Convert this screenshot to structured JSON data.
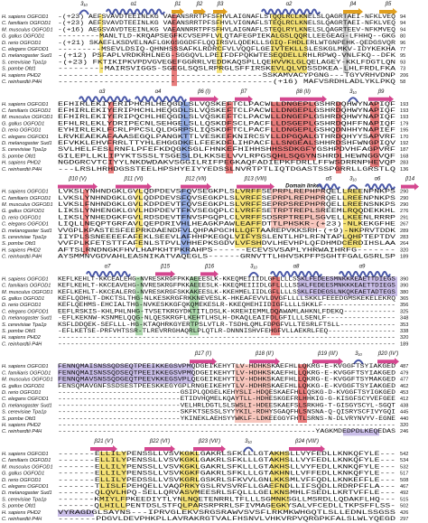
{
  "species": [
    "H. sapiens OGFOD1",
    "C. familiaris OGFOD1",
    "M. musculus OGFOD1",
    "G. gallus OGFOD1",
    "D. rerio OGFOD1",
    "C. elegans OGFOD1",
    "D. melanogaster Sud1",
    "S. cerevisiae Tpa1p",
    "S. pombe Ofd1",
    "H. sapiens PHD2",
    "C. reinhardtii P4H"
  ],
  "blocks": [
    {
      "elements": [
        "3₁₀",
        "α1",
        "β1",
        "β2",
        "β3",
        "α2",
        "β4",
        "β5"
      ],
      "rows": [
        {
          "seq": "-(+23) AEFSVAVDTEEINLKG VAEANSRRTPFSFHVLAIGNAFLSTQQLRCLKNELSLQAGRTAEI-NFKLVEQ",
          "end": 94
        },
        {
          "seq": "-(+23) AEFSVAVDTEEINLKG VAEANSRRTPFSFHVLVIGNAFLSTEQLRCLKNELSLQAGRTAEI-NFKLVEQ",
          "end": 94
        },
        {
          "seq": "-(+16) AEGSVAVDTEEINLKG VAEANNRRTPFSFHVLAIGNAFLSTEQLRYLKNELSLQAGRTEEV-NFKMVEQ",
          "end": 94
        },
        {
          "seq": "---------MANLTLD-KRQAPSEGFKCVSEPFLVLQTAFEGPIEKALGSLQQRLLEEGEAG-LFHHQ--GKG",
          "end": 80
        },
        {
          "seq": "-(+21) SKAEFLKSDVELNAFLGKGSGGDFFLQQIRSVLQDEKLLSGIQ-FHDLERLWTGNPEHK-QEDGSVQR",
          "end": 96
        },
        {
          "seq": "---------MSEVLDSIQ-QHNHSSSAFKLRDRCFVLVQQFLGEIVTEKLLSLESKGLMKV-IDYKEKHA",
          "end": 77
        },
        {
          "seq": "-(+12) PSFAPLVRDKRHLNEG-SGGQVLLPEIFDFPQKWTESEQDELLRHLRPWQ-VNLFKQ--DFK",
          "end": 95
        },
        {
          "seq": "-(+23) FKTIKIPKVPDVGVEGEFGGRRLVEDDKAQSPLLQEHVVKLGLQELAGEY-KKLFDGTLQN",
          "end": 93
        },
        {
          "seq": "---------MAIRSVIGGS-SGEGLSQSLRPRGLSFFIRSKEVLQLVDSSDKEA-LHLFRDLFKA",
          "end": 73
        },
        {
          "seq": "----------------------------------------SSKAMVACYPGNG---TGYVRHVDNP",
          "end": 206
        },
        {
          "seq": "------------------------------------------(+16) MAFVSRDHLADLYKLPKQ",
          "end": 58
        }
      ]
    },
    {
      "elements": [
        "α3",
        "α4",
        "β6 (I)",
        "β7",
        "β8 (II)",
        "3₁₀",
        "β9"
      ],
      "rows": [
        {
          "seq": "EFHIRLEKIYERIPHCHLHEQGDLSLVQSKEFTCLPACWLLDNGEPLGSHRDQHWYNAPIQF",
          "end": 193
        },
        {
          "seq": "EFHIRLEKIYERIPHCHLHEQGDLSLVQSKEFTCLPACWLLDNGEPLGSHRDQHWYNAPIQF",
          "end": 193
        },
        {
          "seq": "EFHIRLEKIYERIPQCHLHEQGDLSLVQSKEFTCLPACWLLDNGEPLGSHRDQHWYNAPIQF",
          "end": 193
        },
        {
          "seq": "EFHLRLEKLYDRIPECNLSEHGELSLLQSKDFSCLPACFLLDSGEPLGSHRDQHFFNAPIQF",
          "end": 179
        },
        {
          "seq": "EYHIRLEKLFCRLPPCSLQLDGRPSLIQSKDFTCLPACFLLDNGEPLGSHQDNHHYNAPIEF",
          "end": 195
        },
        {
          "seq": "LRVKEAEKAFAAASEGQLPANGKTTLVESKEFKNIRCSYLLDPGQALGTHRDQHYYSAPVRF",
          "end": 170
        },
        {
          "seq": "EFVKKLEHVFRRLTTYHLEHGGDKELFEEKDFLIHPACFLLSNGEALSHHRDSHFWNGPIQV",
          "end": 192
        },
        {
          "seq": "SVLHELFESLRNFLPFEFKDQGKSGLFHNKEFHIHHSHHSSDKGFYGSHPDVHFAGPVRF",
          "end": 187
        },
        {
          "seq": "GILEPLLKLIPYKTSSSLTSGESLDLKKSELVVLRPGSQHLSQGYNSHRDLHEWNGGVQF",
          "end": 168
        },
        {
          "seq": "NGDGRCVTCIYYLNKDWDAKVSGGILRIFPEGKAQFADIEPKFDRLLFFWSDRRNPHEVQP",
          "end": 283
        },
        {
          "seq": "---LRSLHRHDGSSTEELHPSHYEIYYEDSSLNVRTPTLIQTDGASTSSPGRRLLGRSTLQ",
          "end": 136
        }
      ]
    },
    {
      "elements": [
        "β10 (V)",
        "β11 (VI)",
        "β12 (VII)",
        "β13 (VIII)",
        "Domain linker",
        "α5",
        "3₁₀",
        "α6",
        "β14"
      ],
      "rows": [
        {
          "seq": "LVKSLYNHNDGKLGVLQDPDEVSFQVSEGKPLSLVRFFSEPRPLREPHPRQELLREENPNKPS",
          "end": 290
        },
        {
          "seq": "LVKSLYNHNDGKLGVLQDPDEVSFQVSEGKPLSLVRFFSEPRPLREPHPRQELLREENPNKPS",
          "end": 290
        },
        {
          "seq": "LVKSLFNHNDGKLGVLKDPDEVTFQVSEGKPLSLVRFFSEPRPSREPHPRQELLREENSNKPS",
          "end": 290
        },
        {
          "seq": "LIKSLYNHENGKLGVLHDPDEVTFKVSEGQPLCLVRFFSETRPTREPLSREEMLRQQDEKKHL",
          "end": 276
        },
        {
          "seq": "LIKSLYNHEDGKFGVLRDSDEVTFNVSPGQPLCLVRFFSDSRPTREPLSGVELLKEENLRRRP",
          "end": 291
        },
        {
          "seq": "LIQLLNEQPTGRFAVLQEPDRIVHLHEAGKPAWLEAFFDTTLPHSKR-(+23)-NLKEKGFHE",
          "end": 267
        },
        {
          "seq": "VVGPLKPASTESFEEPRKDAENDFVLQHPAPGCHLLQFTAAREPVKKSRH-(+9)-NKPRVTDDK",
          "end": 289
        },
        {
          "seq": "IIYPLSSNEEEEFAFEKLSEEVLAFHHPKEGQLVIFYSSLENTLHPLRFNTAPLQHPTEPTDV",
          "end": 283
        },
        {
          "seq": "VVFPLKFETSTTFAFENLSTPVLVHHEPKSGDVLVFSHDVLHEVHPLQFDHMDCERDIHSLAA",
          "end": 264
        },
        {
          "seq": "AFTSLRNDNGKFHVLHAPKHTPKRAHPS------ECEVSVSAPLYHRWAIHRFG-------",
          "end": 320
        },
        {
          "seq": "AYSMMNVGDVAHLEASNIKATVAQEGLS------GRNVTTLHHVSKPFPSGHTFGALGSRLSP",
          "end": 189
        }
      ]
    },
    {
      "elements": [
        "α7",
        "β15",
        "β16",
        "3₁₀",
        "α8",
        "α9"
      ],
      "rows": [
        {
          "seq": "KEFLKEHLT-KKCEALEHG-NVRESKRGFPKKAEEESLK-KKEQMEIIIDLGFLLLLSSKLFEDEESMNKKKEAETTDIEGS",
          "end": 390
        },
        {
          "seq": "KEFLKEHLT-KKCEAVEHG-NVRESKRGFPKKAEEESLK-KKEQMEIIIDLGFLLLLSSKLFEDEESMNKKKEAETTDIEGS",
          "end": 390
        },
        {
          "seq": "KEFLKEHLT-KKCEALERG-NVRESKRGFSKKAKEESLK-KKEHMELIIDLGFLLLLSSKLFEDEGSLNKQKEAETADTEGS",
          "end": 380
        },
        {
          "seq": "KEFLQDHLT-DKCTSLTHG-NLKESKRGFRKKNEVESLK-HKEAFEVVLDVGFLLLLSKKLFEEEDGMSKEKELEKRQ",
          "end": 365
        },
        {
          "seq": "KEFLQEHMS-EHCIALTHG-NVKESKKGFQKQMEKESLR-KKEQHEHIIDIGFLLLLSKKLF-----------------",
          "end": 356
        },
        {
          "seq": "EEFLRSKIS-KHLPHLNHG-TVSETKRGYDKTITLDSLK-KREHIEMMLDQAWAMLAHKNLFDEKQ------------",
          "end": 325
        },
        {
          "seq": "-EFLKEKNW-KSNMELQQG-NLQESKRGFLKEHTLHSLH-DKAQLEAIFDLGFILLLSENLF----------------",
          "end": 348
        },
        {
          "seq": "KSFLDDQEK-SEFLLL-HG-KTAQHRKGYERTPSLVTLR-TSDHLQMLFDPGFVLLTESRLFTSLL-------------",
          "end": 353
        },
        {
          "seq": "-EFLKETSE-PRFVHTSSR-TLREVRRGHAQRLPLQTLR-DNNNISHVFEHGFVLLAEKRLFEQ----------------",
          "end": 338
        },
        {
          "seq": "--------------------------------------------------------------------------------",
          "end": 320
        },
        {
          "seq": "--------------------------------------------------------------------------------",
          "end": 189
        }
      ]
    },
    {
      "elements": [
        "β17 (I')",
        "β18 (II')",
        "β19 (III')",
        "3₁₀",
        "β20 (IV')"
      ],
      "rows": [
        {
          "seq": "FENNQMAISNSSQDSEQTPEEIKKEGSVPMQDGEIKEHYTLV-HDHKSKAEFHLLQKRG-E-KVGGFTSYIAKGED",
          "end": 487
        },
        {
          "seq": "FENNQMAISNSSQDSEQTPEEIKKEGSVPMQDGEIKEHYTLV-HDHKSKAEFHLLQKRG-E-KVGGFTSYIAKGED",
          "end": 479
        },
        {
          "seq": "FENNQMAVSNSSQDGEQTPEEVKKEGSVPLQEGEIKEHYTLV-HDHKSKAEFHLLQKRG-E-KVGGFTSYMAKGED",
          "end": 477
        },
        {
          "seq": "FENSQMAVGNFSSDSESTPEESKKEGYGPLRNGEIKEHYTLV-HDHRSKAEFHLLQKKG-E-KVGGFTSYIAKGED",
          "end": 462
        },
        {
          "seq": "-----------------------------GSIPLQDGELKEHYSLI-HDQESKAEFHLLQSKG-D-KVGGFTSYIGKGED",
          "end": 453
        },
        {
          "seq": "-----------------------------ETIDVHQMELKQAYTLL-HDHESKGEFRLHHKIG-G-KISGFSCYVEFGEE",
          "end": 412
        },
        {
          "seq": "-----------------------------VELHRLDGTLSLSWSLI-HDEESKAEFSLSRKHG-T-GISGYSCYL-SGQT",
          "end": 438
        },
        {
          "seq": "-----------------------------SKFKTSESSLSYYYKIL-RDHYSGAQFHLSNSNA-Q-QISRYSCFIVYGQI",
          "end": 445
        },
        {
          "seq": "-----------------------------YKINEKLAEHSYYWKLF-LDKEEGGYFHTLSRNS-N-DLVRYNVYV-EGNE",
          "end": 440
        },
        {
          "seq": "-----------------------------------------------------------------------------",
          "end": 320
        },
        {
          "seq": "----------------------------------------------------------YAGKMDEDPDLKEQEDAS",
          "end": 246
        }
      ]
    },
    {
      "elements": [
        "β21 (V')",
        "β22 (VI')",
        "β23 (VII')",
        "3₁₀",
        "β24 (VIII')"
      ],
      "rows": [
        {
          "seq": "-------ELLILYPENSSLLVSVKGKLGAKRLSFKLLLGTAKHSLLVYFEDLLKNKQFYLE---",
          "end": 542
        },
        {
          "seq": "-------ELLILYPENSSLLVSVKGKLGAKRLSFKLLLGTAKHSLLVYFEDLLKNKQFYLE---",
          "end": 534
        },
        {
          "seq": "-------ELLILYPENSSLLVSVKGKLGAKRLSFKLLLGTAKHSLLVYFEDLLKNKQFYLE---",
          "end": 532
        },
        {
          "seq": "-------ELLILYPENSSLLVSVKGKFGAKRLSFKLLLGTAKHNLLVFFEDLLKNKQFYLE---",
          "end": 517
        },
        {
          "seq": "-------ELLILYPEDSSLLVSVKGRLGSKRLSFKVVLGNLKKSMLVFFQDLLKNKEFFLE---",
          "end": 508
        },
        {
          "seq": "-------TLISLFPEHQELLVAQPRKYGSLRVSVRFLLGAEFNDLLIFSQDLLRDRPFFLA---",
          "end": 467
        },
        {
          "seq": "-------QLQVLHPQ-SELLQRVASVMEESRLSFQLLLGELKNSMHLFSEDLLKRTVFFLE---",
          "end": 492
        },
        {
          "seq": "-------KMIYLFPKEEDIYTLYNLNQETENRRLTFLLLSGMNKSGLLMSRDLLQDAKFLHQ---",
          "end": 515
        },
        {
          "seq": "-------QLHILLPENTDSLSTFQLPARSRPRRLSFIVMAGEGKYSALVFCEDLLTKPSFFLSS-",
          "end": 502
        },
        {
          "seq": "VYRAGDGLSAYNS---IPRVGLEKVSRGSRAWVSVSFLRKMKWHGQTLSLLEDNLSSGSS",
          "end": 426
        },
        {
          "seq": "-------PDGVLDEVPHKPLLAVRAKRGTVALFHSNVLVHKVRPVQRGPKFALSLWLYQEGD",
          "end": 297
        }
      ]
    }
  ]
}
